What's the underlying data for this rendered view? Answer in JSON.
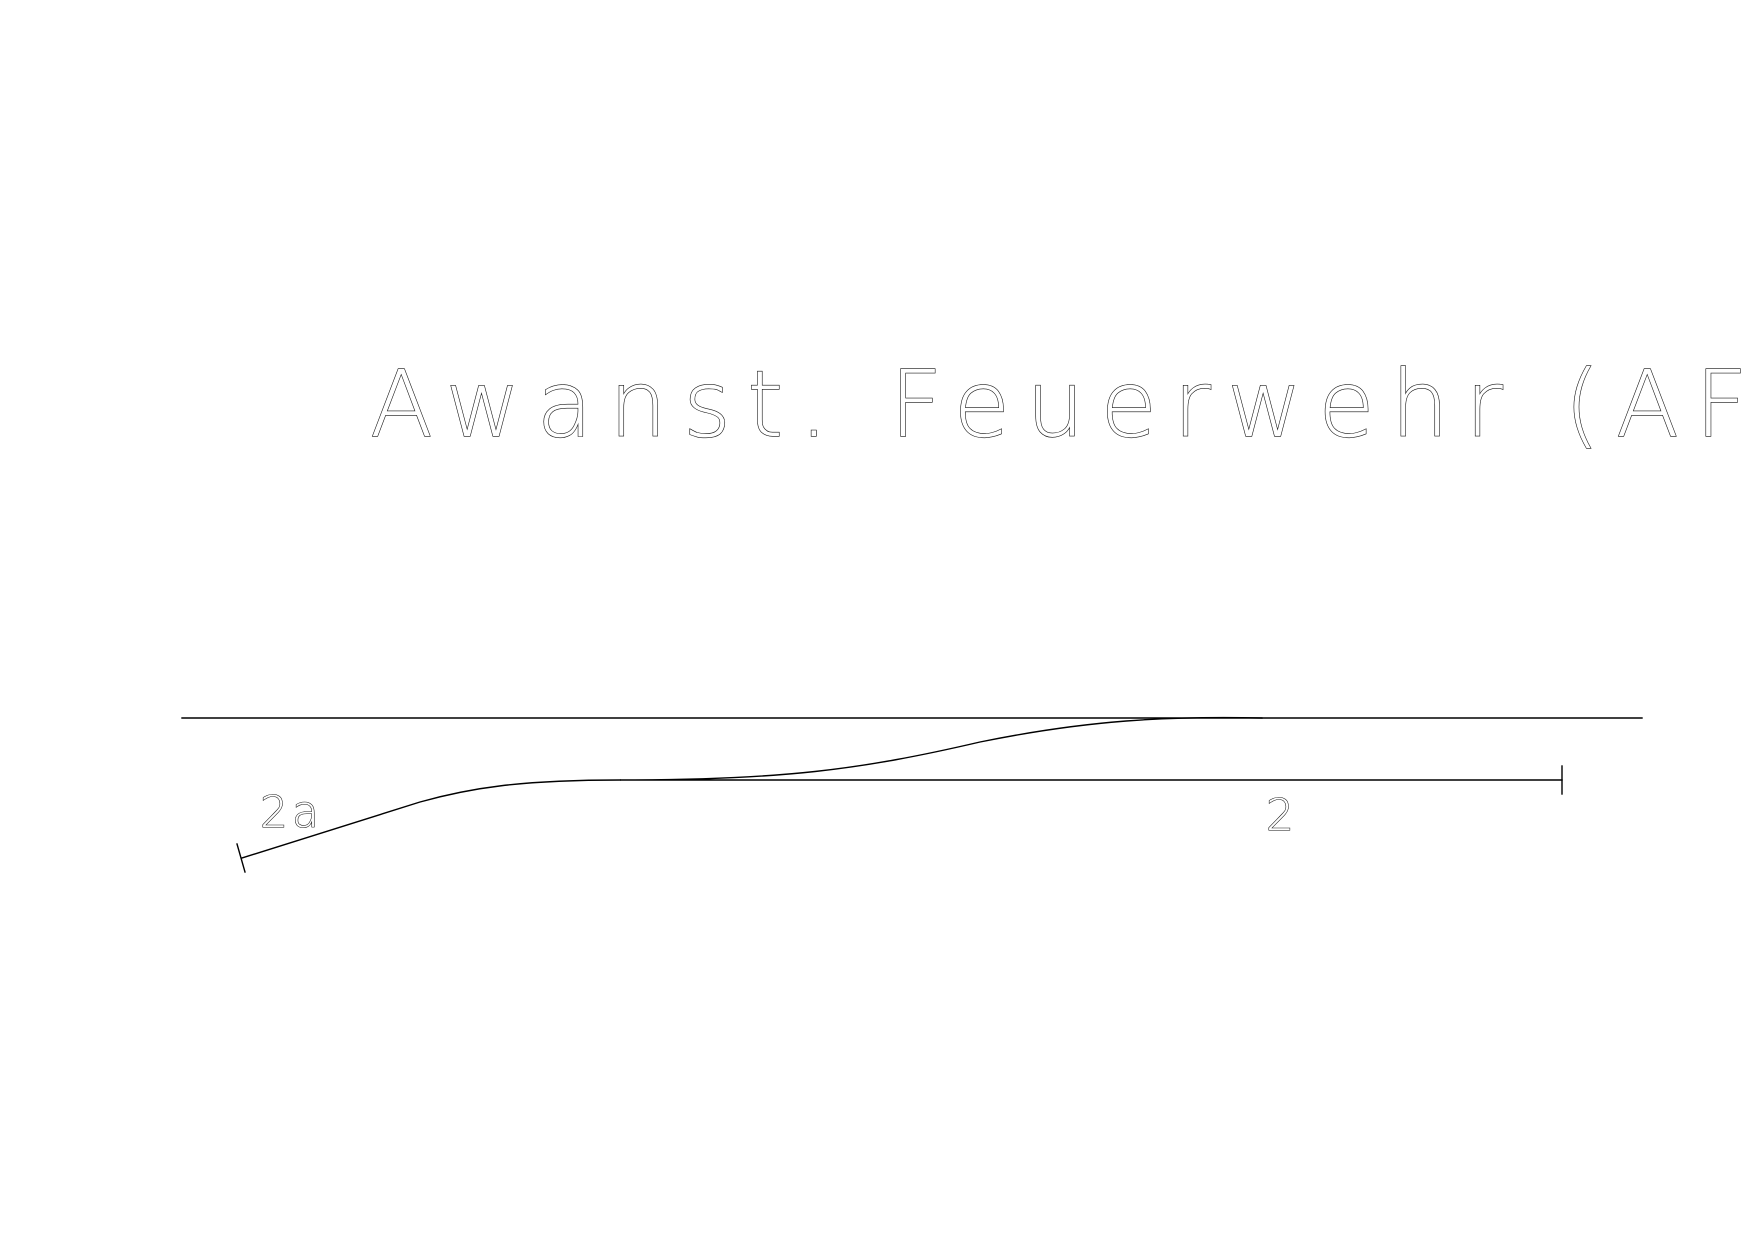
{
  "diagram": {
    "title": "Awanst. Feuerwehr (AFW)",
    "tracks": [
      {
        "id": "main-track",
        "label": ""
      },
      {
        "id": "track-2",
        "label": "2"
      },
      {
        "id": "track-2a",
        "label": "2a"
      }
    ],
    "colors": {
      "background": "#ffffff",
      "line": "#000000"
    }
  }
}
